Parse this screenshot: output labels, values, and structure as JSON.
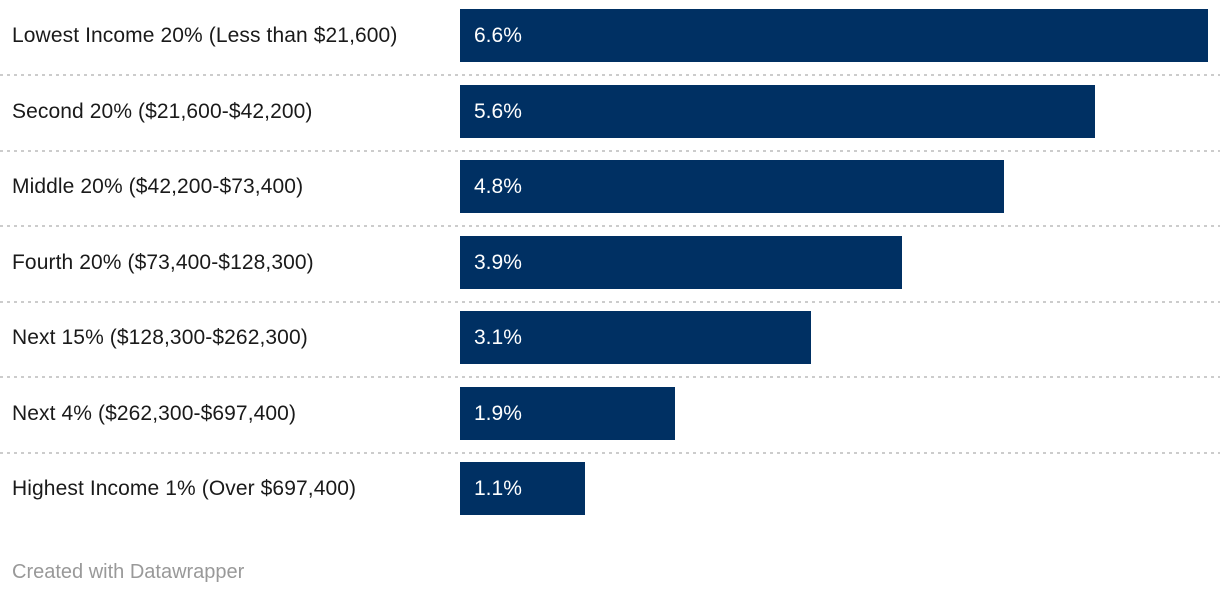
{
  "chart_data": {
    "type": "bar",
    "orientation": "horizontal",
    "title": "",
    "xlabel": "",
    "ylabel": "",
    "xlim": [
      0,
      6.6
    ],
    "grid": false,
    "legend": false,
    "categories": [
      "Lowest Income 20% (Less than $21,600)",
      "Second 20% ($21,600-$42,200)",
      "Middle 20% ($42,200-$73,400)",
      "Fourth 20% ($73,400-$128,300)",
      "Next 15% ($128,300-$262,300)",
      "Next 4% ($262,300-$697,400)",
      "Highest Income 1% (Over $697,400)"
    ],
    "values": [
      6.6,
      5.6,
      4.8,
      3.9,
      3.1,
      1.9,
      1.1
    ],
    "value_labels": [
      "6.6%",
      "5.6%",
      "4.8%",
      "3.9%",
      "3.1%",
      "1.9%",
      "1.1%"
    ]
  },
  "colors": {
    "bar": "#003063",
    "label_text": "#1a1a1a",
    "value_text": "#ffffff",
    "separator": "#cccccc",
    "footer_text": "#999999",
    "background": "#ffffff"
  },
  "footer": {
    "credit": "Created with Datawrapper"
  }
}
